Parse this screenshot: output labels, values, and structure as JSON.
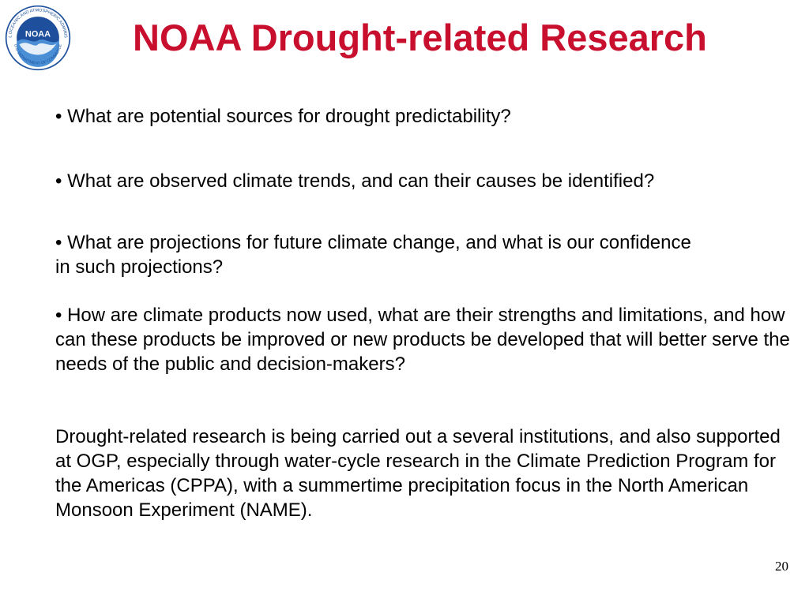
{
  "slide": {
    "title": "NOAA Drought-related Research",
    "logo": {
      "icon": "noaa-logo",
      "ring_text": "NATIONAL OCEANIC AND ATMOSPHERIC ADMINISTRATION",
      "center_text": "NOAA",
      "bottom_text": "U.S. DEPARTMENT OF COMMERCE"
    },
    "bullets": [
      {
        "marker": "•",
        "text": "What are potential sources for drought predictability?"
      },
      {
        "marker": "•",
        "text": "What are observed climate trends, and can their causes be identified?"
      },
      {
        "marker": "•",
        "text": "What are projections for future climate change, and what is our confidence in such projections?"
      },
      {
        "marker": "•",
        "text": "How are climate products now used, what are their strengths and limitations, and how can these products be improved or new products be developed that will better serve the needs of the public and decision-makers?"
      }
    ],
    "paragraph": "Drought-related research is being carried out a several institutions, and also supported at OGP, especially through water-cycle research in the Climate Prediction Program for the Americas (CPPA), with a summertime precipitation focus in the North American Monsoon Experiment (NAME).",
    "page_number": "20",
    "colors": {
      "title": "#c8102e",
      "logo_ring": "#ffffff",
      "logo_sky": "#1e4f9c",
      "logo_sea": "#4a8fd6"
    }
  }
}
